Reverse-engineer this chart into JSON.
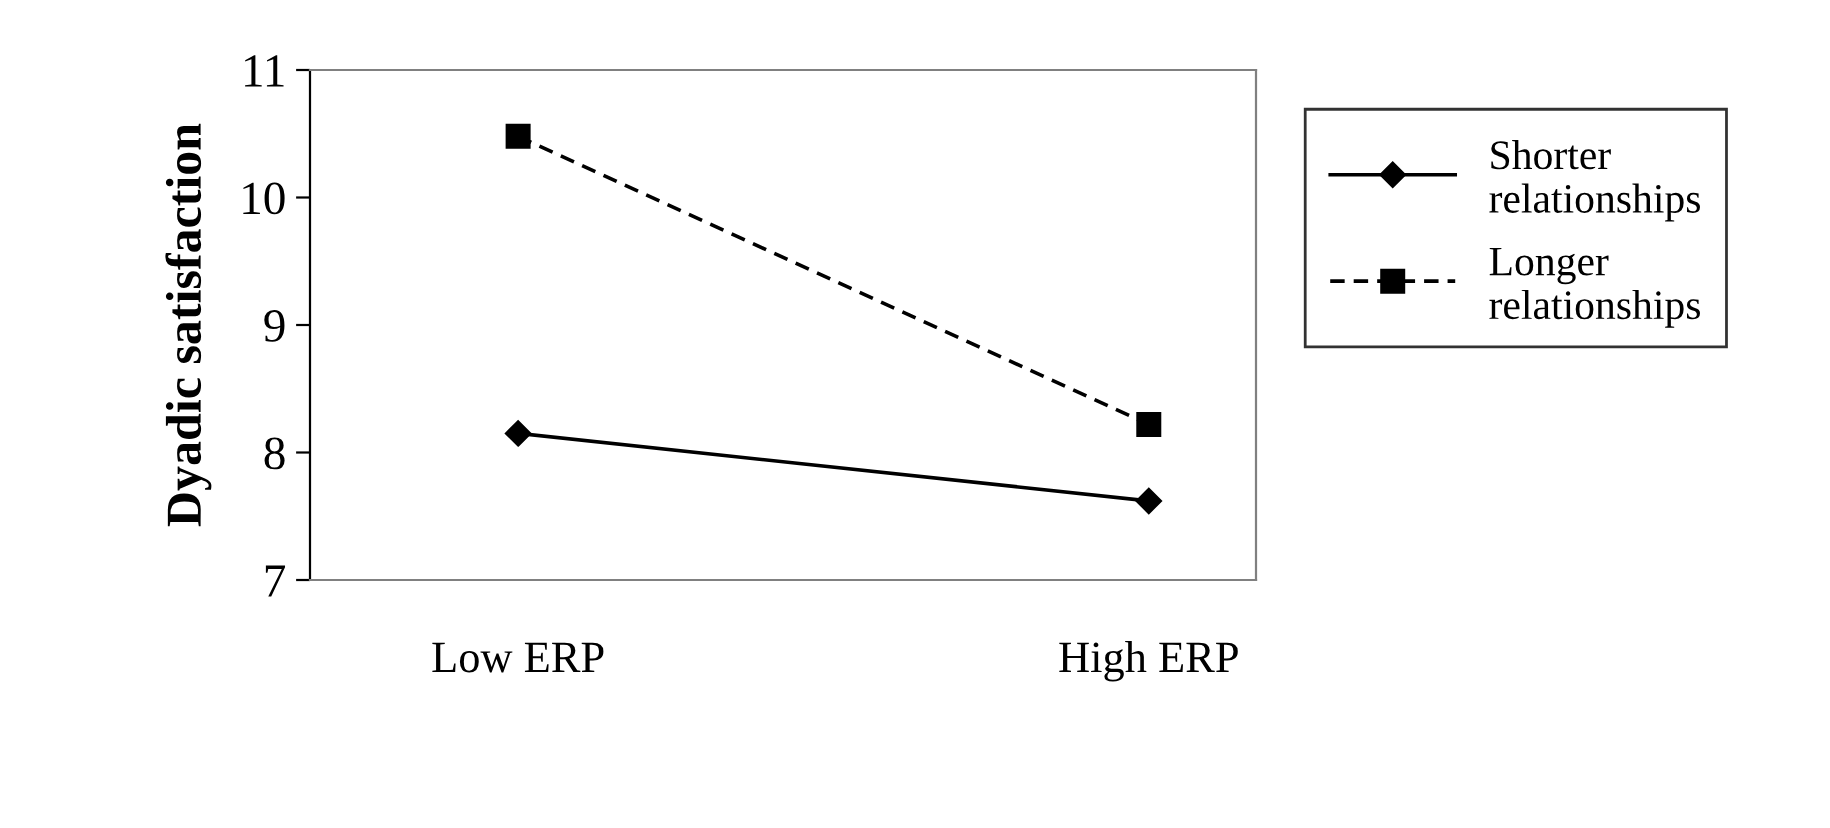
{
  "chart_data": {
    "type": "line",
    "ylabel": "Dyadic satisfaction",
    "categories": [
      "Low ERP",
      "High ERP"
    ],
    "series": [
      {
        "name": "Shorter relationships",
        "color": "#000000",
        "values": [
          8.15,
          7.62
        ],
        "marker": "diamond",
        "line_style": "solid"
      },
      {
        "name": "Longer relationships",
        "color": "#000000",
        "values": [
          10.48,
          8.22
        ],
        "marker": "square",
        "line_style": "dashed"
      }
    ],
    "ylim": [
      7,
      11
    ],
    "yticks": [
      7,
      8,
      9,
      10,
      11
    ],
    "grid": false,
    "legend": "right"
  }
}
